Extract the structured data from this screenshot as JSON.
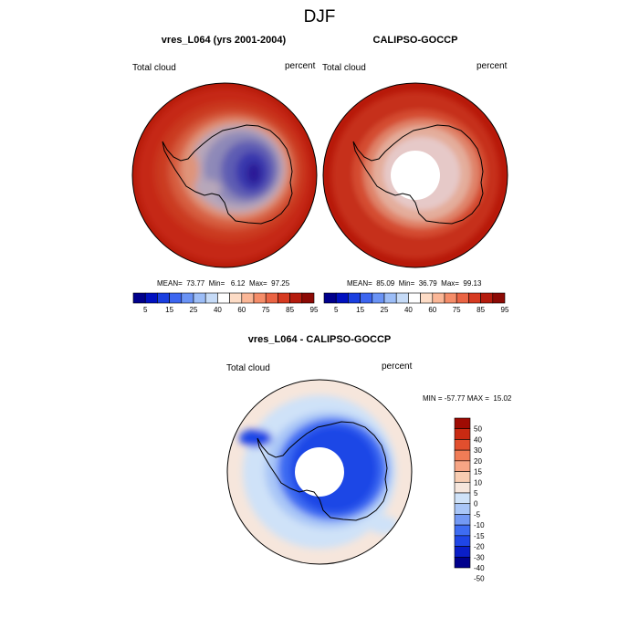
{
  "figure_title": "DJF",
  "colors": {
    "seq_palette": [
      "#00008c",
      "#0010c0",
      "#1a3fe0",
      "#3d66f0",
      "#6a93f5",
      "#9cbdf7",
      "#c6dbf7",
      "#ffffff",
      "#fddcc6",
      "#fbb797",
      "#f58d69",
      "#ea6444",
      "#d63a21",
      "#b51c0e",
      "#8c0a05"
    ],
    "diff_palette": [
      "#00008c",
      "#0a1ec8",
      "#1f46e6",
      "#3e6cf2",
      "#7399f4",
      "#a9c6f7",
      "#cfe2f8",
      "#f6e6dc",
      "#f8cdb2",
      "#f7a585",
      "#f07c56",
      "#e24f2e",
      "#c92a12",
      "#9f0b03"
    ],
    "coastline": "#000000"
  },
  "panels": [
    {
      "title": "vres_L064 (yrs 2001-2004)",
      "left_label": "Total cloud",
      "right_label": "percent",
      "stats": "MEAN=  73.77  Min=   6.12  Max=  97.25"
    },
    {
      "title": "CALIPSO-GOCCP",
      "left_label": "Total cloud",
      "right_label": "percent",
      "stats": "MEAN=  85.09  Min=  36.79  Max=  99.13"
    },
    {
      "title": "vres_L064 - CALIPSO-GOCCP",
      "left_label": "Total cloud",
      "right_label": "percent",
      "stats": "MIN = -57.77 MAX =  15.02"
    }
  ],
  "chart_data": [
    {
      "type": "heatmap",
      "title": "vres_L064 (yrs 2001-2004)",
      "projection": "south polar stereographic",
      "variable": "Total cloud",
      "units": "percent",
      "mean": 73.77,
      "min": 6.12,
      "max": 97.25,
      "contour_levels": [
        5,
        10,
        15,
        20,
        25,
        30,
        40,
        50,
        60,
        70,
        75,
        80,
        85,
        90,
        95
      ],
      "colorbar_tick_labels": [
        "5",
        "15",
        "25",
        "40",
        "60",
        "75",
        "85",
        "95"
      ]
    },
    {
      "type": "heatmap",
      "title": "CALIPSO-GOCCP",
      "projection": "south polar stereographic",
      "variable": "Total cloud",
      "units": "percent",
      "mean": 85.09,
      "min": 36.79,
      "max": 99.13,
      "contour_levels": [
        5,
        10,
        15,
        20,
        25,
        30,
        40,
        50,
        60,
        70,
        75,
        80,
        85,
        90,
        95
      ],
      "colorbar_tick_labels": [
        "5",
        "15",
        "25",
        "40",
        "60",
        "75",
        "85",
        "95"
      ]
    },
    {
      "type": "heatmap",
      "title": "vres_L064 - CALIPSO-GOCCP",
      "projection": "south polar stereographic",
      "variable": "Total cloud",
      "units": "percent",
      "min": -57.77,
      "max": 15.02,
      "contour_levels": [
        -50,
        -40,
        -30,
        -20,
        -15,
        -10,
        -5,
        0,
        5,
        10,
        15,
        20,
        30,
        40,
        50
      ],
      "colorbar_tick_labels": [
        "50",
        "40",
        "30",
        "20",
        "15",
        "10",
        "5",
        "0",
        "-5",
        "-10",
        "-15",
        "-20",
        "-30",
        "-40",
        "-50"
      ]
    }
  ]
}
